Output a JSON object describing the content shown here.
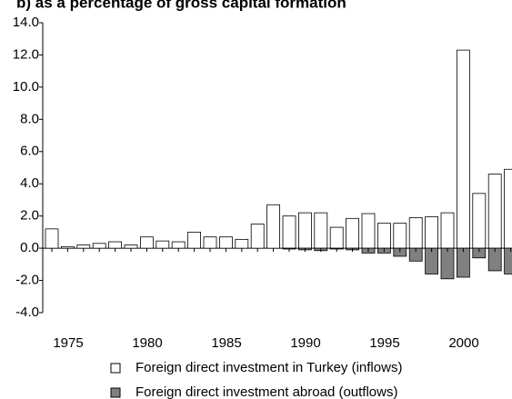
{
  "chart_data": {
    "type": "bar",
    "title": "b) as a percentage of gross capital formation",
    "categories": [
      "1975",
      null,
      null,
      null,
      null,
      "1980",
      null,
      null,
      null,
      null,
      "1985",
      null,
      null,
      null,
      null,
      "1990",
      null,
      null,
      null,
      null,
      "1995",
      null,
      null,
      null,
      null,
      "2000",
      null,
      null,
      null,
      null
    ],
    "series": [
      {
        "name": "Foreign direct investment in Turkey (inflows)",
        "color": "#ffffff",
        "values": [
          1.2,
          0.1,
          0.2,
          0.3,
          0.4,
          0.2,
          0.7,
          0.45,
          0.4,
          1.0,
          0.7,
          0.7,
          0.55,
          1.5,
          2.7,
          2.0,
          2.2,
          2.2,
          1.3,
          1.85,
          2.15,
          1.55,
          1.55,
          1.9,
          1.95,
          2.2,
          12.3,
          3.4,
          4.6,
          4.9
        ]
      },
      {
        "name": "Foreign direct investment abroad (outflows)",
        "color": "#808080",
        "values": [
          0,
          0,
          0,
          0,
          0,
          0,
          0,
          0,
          0,
          0,
          0,
          0,
          0,
          0,
          0,
          -0.05,
          -0.1,
          -0.15,
          -0.05,
          -0.1,
          -0.3,
          -0.3,
          -0.5,
          -0.8,
          -1.6,
          -1.9,
          -1.8,
          -0.6,
          -1.4,
          -1.6
        ]
      }
    ],
    "ylim": [
      -4,
      14
    ],
    "yticks": [
      {
        "value": -4,
        "label": "-4.0"
      },
      {
        "value": -2,
        "label": "-2.0"
      },
      {
        "value": 0,
        "label": "0.0"
      },
      {
        "value": 2,
        "label": "2.0"
      },
      {
        "value": 4,
        "label": "4.0"
      },
      {
        "value": 6,
        "label": "6.0"
      },
      {
        "value": 8,
        "label": "8.0"
      },
      {
        "value": 10,
        "label": "10.0"
      },
      {
        "value": 12,
        "label": "12.0"
      },
      {
        "value": 14,
        "label": "14.0"
      }
    ]
  }
}
